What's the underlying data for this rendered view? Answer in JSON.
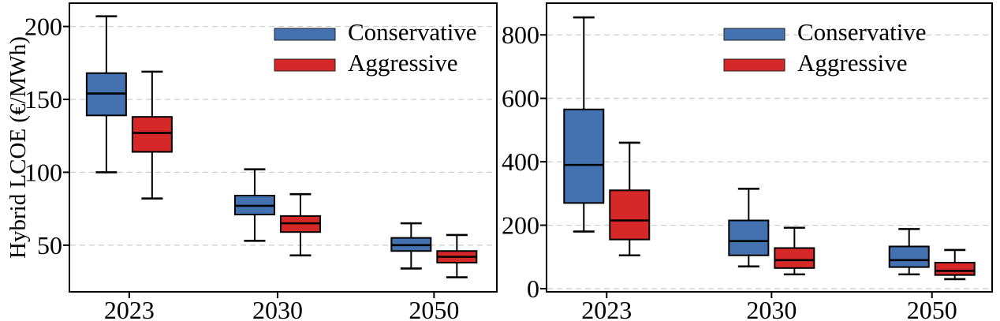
{
  "figure": {
    "background": "#ffffff",
    "axis_color": "#000000",
    "grid_color": "#cccccc"
  },
  "chart_data": [
    {
      "type": "box",
      "panel": "left",
      "title": "",
      "xlabel": "",
      "ylabel": "Hybrid LCOE (€/MWh)",
      "ylim": [
        18,
        216
      ],
      "yticks": [
        "50",
        "100",
        "150",
        "200"
      ],
      "ytick_values": [
        50,
        100,
        150,
        200
      ],
      "categories": [
        "2023",
        "2030",
        "2050"
      ],
      "grid": "horizontal-dashed",
      "legend_position": "upper-right",
      "series": [
        {
          "name": "Conservative",
          "color": "#4472B0",
          "boxes": [
            {
              "low": 100,
              "q1": 139,
              "median": 154,
              "q3": 168,
              "high": 207
            },
            {
              "low": 53,
              "q1": 71,
              "median": 77,
              "q3": 84,
              "high": 102
            },
            {
              "low": 34,
              "q1": 46,
              "median": 50,
              "q3": 55,
              "high": 65
            }
          ]
        },
        {
          "name": "Aggressive",
          "color": "#D62829",
          "boxes": [
            {
              "low": 82,
              "q1": 114,
              "median": 127,
              "q3": 138,
              "high": 169
            },
            {
              "low": 43,
              "q1": 59,
              "median": 65,
              "q3": 70,
              "high": 85
            },
            {
              "low": 28,
              "q1": 38,
              "median": 42,
              "q3": 46,
              "high": 57
            }
          ]
        }
      ]
    },
    {
      "type": "box",
      "panel": "right",
      "title": "",
      "xlabel": "",
      "ylabel": "",
      "ylim": [
        -10,
        900
      ],
      "yticks": [
        "0",
        "200",
        "400",
        "600",
        "800"
      ],
      "ytick_values": [
        0,
        200,
        400,
        600,
        800
      ],
      "categories": [
        "2023",
        "2030",
        "2050"
      ],
      "grid": "horizontal-dashed",
      "legend_position": "upper-right",
      "series": [
        {
          "name": "Conservative",
          "color": "#4472B0",
          "boxes": [
            {
              "low": 180,
              "q1": 270,
              "median": 390,
              "q3": 565,
              "high": 855
            },
            {
              "low": 70,
              "q1": 105,
              "median": 150,
              "q3": 215,
              "high": 315
            },
            {
              "low": 45,
              "q1": 68,
              "median": 90,
              "q3": 133,
              "high": 188
            }
          ]
        },
        {
          "name": "Aggressive",
          "color": "#D62829",
          "boxes": [
            {
              "low": 105,
              "q1": 155,
              "median": 215,
              "q3": 310,
              "high": 460
            },
            {
              "low": 45,
              "q1": 65,
              "median": 90,
              "q3": 128,
              "high": 192
            },
            {
              "low": 30,
              "q1": 43,
              "median": 56,
              "q3": 82,
              "high": 122
            }
          ]
        }
      ]
    }
  ]
}
